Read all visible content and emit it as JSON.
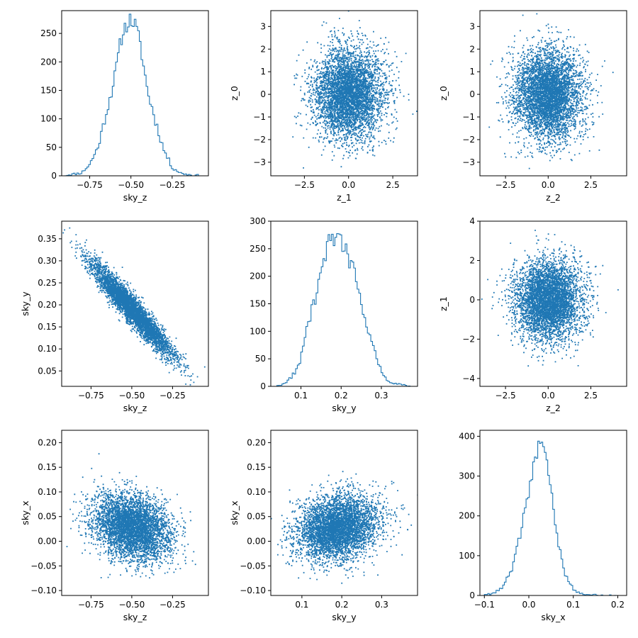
{
  "colors": {
    "series": "#1f77b4",
    "axes": "#000000",
    "background": "#ffffff"
  },
  "chart_data": [
    {
      "id": "hist-sky_z",
      "type": "histogram",
      "xlabel": "sky_z",
      "ylabel": "",
      "xlim": [
        -0.92,
        -0.03
      ],
      "ylim": [
        0,
        290
      ],
      "xticks": [
        -0.75,
        -0.5,
        -0.25
      ],
      "yticks": [
        0,
        50,
        100,
        150,
        200,
        250
      ],
      "histogram": {
        "x": [
          -0.9,
          -0.8,
          -0.75,
          -0.7,
          -0.65,
          -0.6,
          -0.56,
          -0.53,
          -0.5,
          -0.47,
          -0.44,
          -0.4,
          -0.35,
          -0.3,
          -0.25,
          -0.2,
          -0.15,
          -0.08
        ],
        "y": [
          1,
          5,
          20,
          50,
          110,
          170,
          240,
          265,
          275,
          262,
          225,
          150,
          95,
          45,
          15,
          5,
          2,
          0
        ]
      }
    },
    {
      "id": "scatter-z_1-z_0",
      "type": "scatter",
      "xlabel": "z_1",
      "ylabel": "z_0",
      "xlim": [
        -4.4,
        3.9
      ],
      "ylim": [
        -3.6,
        3.7
      ],
      "xticks": [
        -2.5,
        0.0,
        2.5
      ],
      "yticks": [
        -3,
        -2,
        -1,
        0,
        1,
        2,
        3
      ],
      "scatter": {
        "cx": 0,
        "cy": 0,
        "sx": 1.0,
        "sy": 1.0,
        "rho": 0.0,
        "n": 4500
      }
    },
    {
      "id": "scatter-z_2-z_0",
      "type": "scatter",
      "xlabel": "z_2",
      "ylabel": "z_0",
      "xlim": [
        -4.0,
        4.6
      ],
      "ylim": [
        -3.6,
        3.7
      ],
      "xticks": [
        -2.5,
        0.0,
        2.5
      ],
      "yticks": [
        -3,
        -2,
        -1,
        0,
        1,
        2,
        3
      ],
      "scatter": {
        "cx": 0,
        "cy": 0,
        "sx": 1.0,
        "sy": 1.0,
        "rho": 0.0,
        "n": 4500
      }
    },
    {
      "id": "scatter-sky_z-sky_y",
      "type": "scatter",
      "xlabel": "sky_z",
      "ylabel": "sky_y",
      "xlim": [
        -0.93,
        -0.03
      ],
      "ylim": [
        0.015,
        0.39
      ],
      "xticks": [
        -0.75,
        -0.5,
        -0.25
      ],
      "yticks": [
        0.05,
        0.1,
        0.15,
        0.2,
        0.25,
        0.3,
        0.35
      ],
      "scatter": {
        "cx": -0.5,
        "cy": 0.19,
        "sx": 0.12,
        "sy": 0.052,
        "rho": -0.95,
        "n": 4500
      }
    },
    {
      "id": "hist-sky_y",
      "type": "histogram",
      "xlabel": "sky_y",
      "ylabel": "",
      "xlim": [
        0.025,
        0.39
      ],
      "ylim": [
        0,
        300
      ],
      "xticks": [
        0.1,
        0.2,
        0.3
      ],
      "yticks": [
        0,
        50,
        100,
        150,
        200,
        250,
        300
      ],
      "histogram": {
        "x": [
          0.04,
          0.06,
          0.08,
          0.1,
          0.12,
          0.14,
          0.16,
          0.17,
          0.18,
          0.19,
          0.2,
          0.21,
          0.22,
          0.23,
          0.25,
          0.27,
          0.29,
          0.31,
          0.33,
          0.36,
          0.38
        ],
        "y": [
          1,
          5,
          20,
          50,
          120,
          170,
          230,
          270,
          265,
          270,
          262,
          250,
          225,
          215,
          150,
          95,
          45,
          15,
          5,
          2,
          0
        ]
      }
    },
    {
      "id": "scatter-z_2-z_1",
      "type": "scatter",
      "xlabel": "z_2",
      "ylabel": "z_1",
      "xlim": [
        -4.0,
        4.6
      ],
      "ylim": [
        -4.4,
        4.0
      ],
      "xticks": [
        -2.5,
        0.0,
        2.5
      ],
      "yticks": [
        -4,
        -2,
        0,
        2,
        4
      ],
      "scatter": {
        "cx": 0,
        "cy": 0,
        "sx": 1.0,
        "sy": 1.0,
        "rho": 0.0,
        "n": 4500
      }
    },
    {
      "id": "scatter-sky_z-sky_x",
      "type": "scatter",
      "xlabel": "sky_z",
      "ylabel": "sky_x",
      "xlim": [
        -0.93,
        -0.03
      ],
      "ylim": [
        -0.11,
        0.225
      ],
      "xticks": [
        -0.75,
        -0.5,
        -0.25
      ],
      "yticks": [
        -0.1,
        -0.05,
        0.0,
        0.05,
        0.1,
        0.15,
        0.2
      ],
      "scatter": {
        "cx": -0.5,
        "cy": 0.028,
        "sx": 0.12,
        "sy": 0.033,
        "rho": -0.25,
        "n": 4500
      }
    },
    {
      "id": "scatter-sky_y-sky_x",
      "type": "scatter",
      "xlabel": "sky_y",
      "ylabel": "sky_x",
      "xlim": [
        0.022,
        0.39
      ],
      "ylim": [
        -0.11,
        0.225
      ],
      "xticks": [
        0.1,
        0.2,
        0.3
      ],
      "yticks": [
        -0.1,
        -0.05,
        0.0,
        0.05,
        0.1,
        0.15,
        0.2
      ],
      "scatter": {
        "cx": 0.19,
        "cy": 0.028,
        "sx": 0.052,
        "sy": 0.033,
        "rho": 0.2,
        "n": 4500
      }
    },
    {
      "id": "hist-sky_x",
      "type": "histogram",
      "xlabel": "sky_x",
      "ylabel": "",
      "xlim": [
        -0.11,
        0.22
      ],
      "ylim": [
        0,
        415
      ],
      "xticks": [
        -0.1,
        0.0,
        0.1,
        0.2
      ],
      "yticks": [
        0,
        100,
        200,
        300,
        400
      ],
      "histogram": {
        "x": [
          -0.1,
          -0.08,
          -0.06,
          -0.04,
          -0.02,
          0.0,
          0.01,
          0.02,
          0.025,
          0.03,
          0.035,
          0.04,
          0.05,
          0.06,
          0.08,
          0.1,
          0.12,
          0.15,
          0.2
        ],
        "y": [
          1,
          5,
          20,
          60,
          150,
          260,
          320,
          370,
          395,
          372,
          360,
          340,
          270,
          170,
          60,
          15,
          4,
          1,
          0
        ]
      }
    }
  ]
}
